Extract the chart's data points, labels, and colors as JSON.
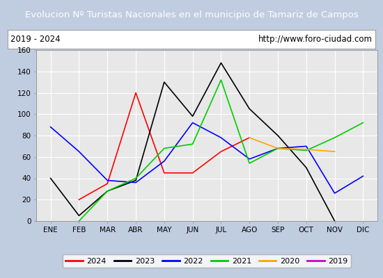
{
  "title": "Evolucion Nº Turistas Nacionales en el municipio de Tamariz de Campos",
  "subtitle_left": "2019 - 2024",
  "subtitle_right": "http://www.foro-ciudad.com",
  "months": [
    "ENE",
    "FEB",
    "MAR",
    "ABR",
    "MAY",
    "JUN",
    "JUL",
    "AGO",
    "SEP",
    "OCT",
    "NOV",
    "DIC"
  ],
  "ylim": [
    0,
    160
  ],
  "yticks": [
    0,
    20,
    40,
    60,
    80,
    100,
    120,
    140,
    160
  ],
  "series_order": [
    "2024",
    "2023",
    "2022",
    "2021",
    "2020",
    "2019"
  ],
  "series": {
    "2024": {
      "color": "#ff0000",
      "values": [
        null,
        20,
        35,
        120,
        45,
        45,
        65,
        78,
        null,
        null,
        null,
        null
      ]
    },
    "2023": {
      "color": "#000000",
      "values": [
        40,
        5,
        28,
        38,
        130,
        98,
        148,
        105,
        80,
        50,
        0,
        null
      ]
    },
    "2022": {
      "color": "#0000ff",
      "values": [
        88,
        65,
        38,
        36,
        56,
        92,
        78,
        58,
        68,
        70,
        26,
        42
      ]
    },
    "2021": {
      "color": "#00cc00",
      "values": [
        null,
        0,
        28,
        40,
        68,
        72,
        132,
        54,
        68,
        66,
        78,
        92
      ]
    },
    "2020": {
      "color": "#ffa500",
      "values": [
        null,
        null,
        null,
        null,
        null,
        null,
        null,
        78,
        68,
        67,
        65,
        null
      ]
    },
    "2019": {
      "color": "#cc00cc",
      "values": [
        null,
        null,
        null,
        null,
        null,
        null,
        null,
        null,
        null,
        null,
        null,
        null
      ]
    }
  },
  "title_bg_color": "#4d8dbf",
  "title_text_color": "#ffffff",
  "fig_bg_color": "#c0cce0",
  "plot_bg_color": "#e8e8e8",
  "grid_color": "#ffffff",
  "border_color": "#999999"
}
